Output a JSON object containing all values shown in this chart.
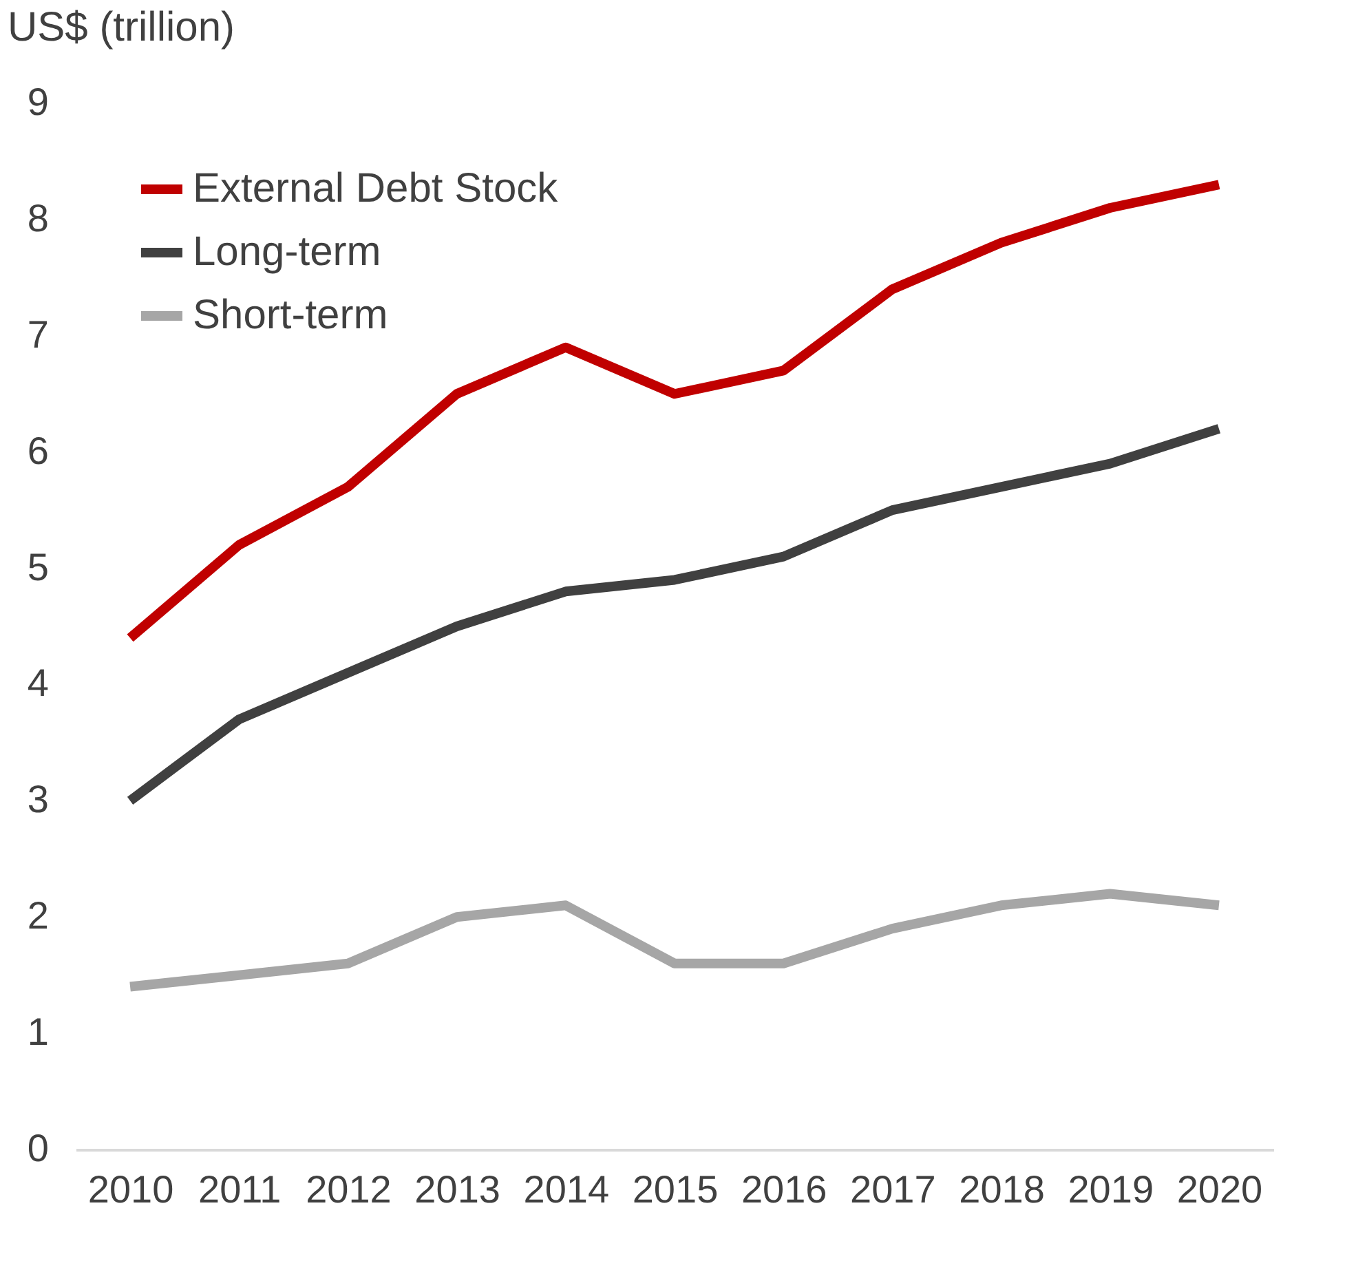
{
  "chart_data": {
    "type": "line",
    "ylabel": "US$ (trillion)",
    "categories": [
      "2010",
      "2011",
      "2012",
      "2013",
      "2014",
      "2015",
      "2016",
      "2017",
      "2018",
      "2019",
      "2020"
    ],
    "series": [
      {
        "name": "External Debt Stock",
        "color": "#c00000",
        "values": [
          4.4,
          5.2,
          5.7,
          6.5,
          6.9,
          6.5,
          6.7,
          7.4,
          7.8,
          8.1,
          8.3
        ]
      },
      {
        "name": "Long-term",
        "color": "#404040",
        "values": [
          3.0,
          3.7,
          4.1,
          4.5,
          4.8,
          4.9,
          5.1,
          5.5,
          5.7,
          5.9,
          6.2
        ]
      },
      {
        "name": "Short-term",
        "color": "#a6a6a6",
        "values": [
          1.4,
          1.5,
          1.6,
          2.0,
          2.1,
          1.6,
          1.6,
          1.9,
          2.1,
          2.2,
          2.1
        ]
      }
    ],
    "ylim": [
      0,
      9
    ],
    "yticks": [
      0,
      1,
      2,
      3,
      4,
      5,
      6,
      7,
      8,
      9
    ],
    "grid": false,
    "legend": "top left",
    "marker": "none",
    "line_style": "solid"
  }
}
